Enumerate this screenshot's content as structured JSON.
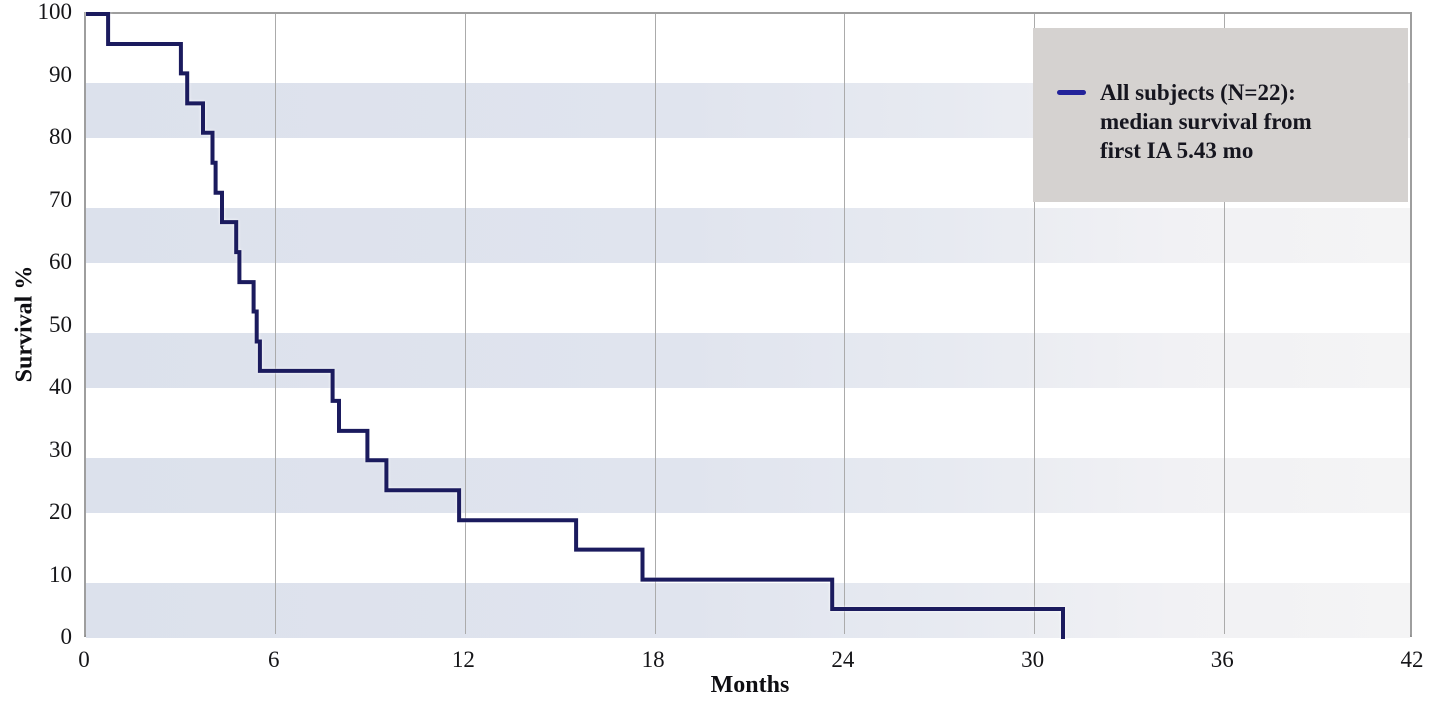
{
  "chart_data": {
    "type": "line",
    "subtype": "kaplan-meier-step-survival",
    "title": "",
    "xlabel": "Months",
    "ylabel": "Survival %",
    "xlim": [
      0,
      42
    ],
    "ylim": [
      0,
      100
    ],
    "x_ticks": [
      0,
      6,
      12,
      18,
      24,
      30,
      36,
      42
    ],
    "y_ticks": [
      0,
      10,
      20,
      30,
      40,
      50,
      60,
      70,
      80,
      90,
      100
    ],
    "grid": "vertical gridlines every 6 months; alternating horizontal shaded decade bands",
    "shaded_bands_y": [
      [
        80,
        90
      ],
      [
        60,
        70
      ],
      [
        40,
        50
      ],
      [
        20,
        30
      ],
      [
        0,
        10
      ]
    ],
    "legend_position": "top-right",
    "series": [
      {
        "name": "All subjects (N=22): median survival from first IA 5.43 mo",
        "color": "#1b1b5e",
        "step_mode": "step-after",
        "points": [
          [
            0,
            100
          ],
          [
            0.7,
            95.2
          ],
          [
            3.0,
            90.5
          ],
          [
            3.2,
            85.7
          ],
          [
            3.7,
            81.0
          ],
          [
            4.0,
            76.2
          ],
          [
            4.1,
            71.4
          ],
          [
            4.3,
            66.7
          ],
          [
            4.75,
            61.9
          ],
          [
            4.85,
            57.1
          ],
          [
            5.3,
            52.4
          ],
          [
            5.4,
            47.6
          ],
          [
            5.5,
            42.9
          ],
          [
            7.8,
            38.1
          ],
          [
            8.0,
            33.3
          ],
          [
            8.9,
            28.6
          ],
          [
            9.5,
            23.8
          ],
          [
            11.8,
            19.0
          ],
          [
            15.5,
            14.3
          ],
          [
            17.6,
            9.5
          ],
          [
            23.6,
            4.8
          ],
          [
            30.9,
            0
          ]
        ]
      }
    ]
  },
  "legend": {
    "line1": "All subjects (N=22):",
    "line2": "median survival from",
    "line3": "first IA 5.43 mo",
    "marker_color": "#23239a",
    "background_color": "#d5d2d0"
  },
  "style": {
    "curve_color": "#1b1b5e",
    "band_color_left": "#dce1ec",
    "band_color_right": "#f4f4f5",
    "gridline_color": "#ababab",
    "plot_border_color": "#9e9e9e",
    "text_color": "#121215"
  }
}
